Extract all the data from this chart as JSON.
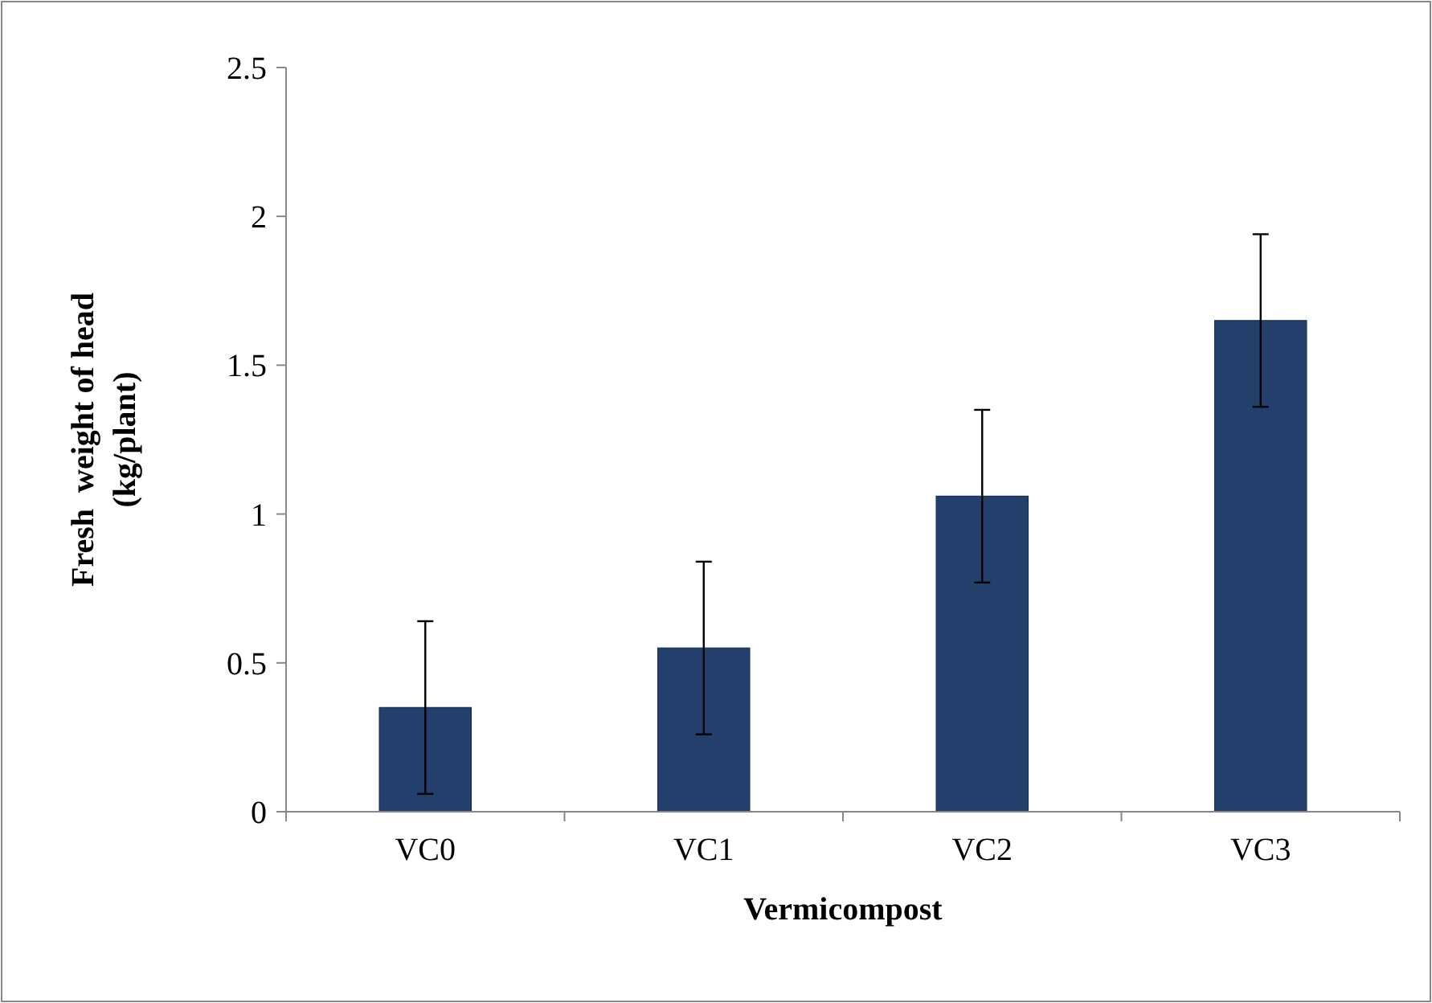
{
  "chart_data": {
    "type": "bar",
    "xlabel": "Vermicompost",
    "ylabel": "Fresh  weight of head\n(kg/plant)",
    "categories": [
      "VC0",
      "VC1",
      "VC2",
      "VC3"
    ],
    "values": [
      0.35,
      0.55,
      1.06,
      1.65
    ],
    "errors": [
      0.29,
      0.29,
      0.29,
      0.29
    ],
    "color": "#23406c",
    "ylim": [
      0,
      2.5
    ],
    "yticks": [
      0,
      0.5,
      1,
      1.5,
      2,
      2.5
    ],
    "grid": false
  }
}
